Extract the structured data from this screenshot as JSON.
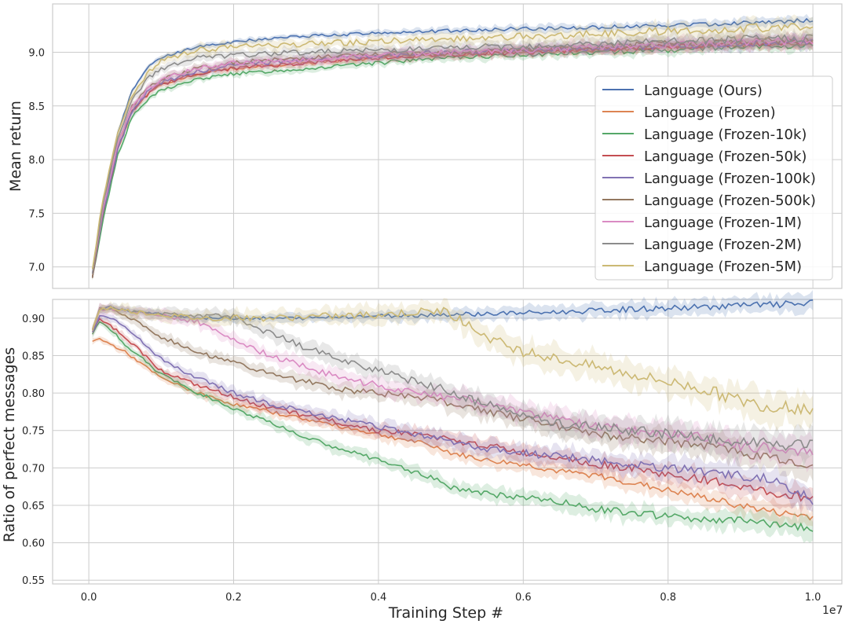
{
  "figure": {
    "x_offset_label": "1e7",
    "x_axis_label": "Training Step #",
    "x_ticks": [
      0.0,
      0.2,
      0.4,
      0.6,
      0.8,
      1.0
    ],
    "x_tick_labels": [
      "0.0",
      "0.2",
      "0.4",
      "0.6",
      "0.8",
      "1.0"
    ]
  },
  "legend": {
    "placement": "upper panel, right",
    "entries": [
      "Language (Ours)",
      "Language (Frozen)",
      "Language (Frozen-10k)",
      "Language (Frozen-50k)",
      "Language (Frozen-100k)",
      "Language (Frozen-500k)",
      "Language (Frozen-1M)",
      "Language (Frozen-2M)",
      "Language (Frozen-5M)"
    ]
  },
  "colors": {
    "Language (Ours)": "#4c72b0",
    "Language (Frozen)": "#dd8452",
    "Language (Frozen-10k)": "#55a868",
    "Language (Frozen-50k)": "#c44e52",
    "Language (Frozen-100k)": "#8172b3",
    "Language (Frozen-500k)": "#937860",
    "Language (Frozen-1M)": "#da8bc3",
    "Language (Frozen-2M)": "#8c8c8c",
    "Language (Frozen-5M)": "#ccb974",
    "grid": "#cccccc",
    "axes_background": "#ffffff"
  },
  "chart_data": [
    {
      "type": "line",
      "panel": "top",
      "ylabel": "Mean return",
      "xlabel": "",
      "xlim": [
        -0.05,
        1.04
      ],
      "ylim": [
        6.8,
        9.45
      ],
      "y_ticks": [
        7.0,
        7.5,
        8.0,
        8.5,
        9.0
      ],
      "y_tick_labels": [
        "7.0",
        "7.5",
        "8.0",
        "8.5",
        "9.0"
      ],
      "grid": true,
      "shaded_band": "variation around each series",
      "x": [
        0.005,
        0.02,
        0.04,
        0.06,
        0.08,
        0.1,
        0.15,
        0.2,
        0.3,
        0.4,
        0.5,
        0.6,
        0.7,
        0.8,
        0.9,
        1.0
      ],
      "series": [
        {
          "name": "Language (Ours)",
          "values": [
            6.95,
            7.6,
            8.25,
            8.65,
            8.85,
            8.95,
            9.05,
            9.1,
            9.15,
            9.18,
            9.2,
            9.22,
            9.23,
            9.25,
            9.27,
            9.3
          ]
        },
        {
          "name": "Language (Frozen)",
          "values": [
            6.9,
            7.5,
            8.1,
            8.45,
            8.6,
            8.7,
            8.8,
            8.85,
            8.9,
            8.95,
            8.98,
            9.0,
            9.02,
            9.05,
            9.07,
            9.08
          ]
        },
        {
          "name": "Language (Frozen-10k)",
          "values": [
            6.9,
            7.45,
            8.05,
            8.4,
            8.55,
            8.65,
            8.75,
            8.8,
            8.85,
            8.9,
            8.95,
            8.98,
            9.0,
            9.02,
            9.05,
            9.06
          ]
        },
        {
          "name": "Language (Frozen-50k)",
          "values": [
            6.9,
            7.5,
            8.1,
            8.45,
            8.6,
            8.7,
            8.8,
            8.85,
            8.9,
            8.95,
            8.98,
            9.0,
            9.03,
            9.05,
            9.08,
            9.1
          ]
        },
        {
          "name": "Language (Frozen-100k)",
          "values": [
            6.9,
            7.5,
            8.1,
            8.45,
            8.62,
            8.72,
            8.82,
            8.88,
            8.93,
            8.97,
            9.0,
            9.02,
            9.04,
            9.06,
            9.08,
            9.1
          ]
        },
        {
          "name": "Language (Frozen-500k)",
          "values": [
            6.9,
            7.55,
            8.15,
            8.5,
            8.65,
            8.75,
            8.85,
            8.9,
            8.95,
            8.98,
            9.0,
            9.03,
            9.05,
            9.08,
            9.1,
            9.12
          ]
        },
        {
          "name": "Language (Frozen-1M)",
          "values": [
            6.95,
            7.55,
            8.15,
            8.5,
            8.65,
            8.75,
            8.85,
            8.9,
            8.93,
            8.97,
            9.0,
            9.02,
            9.05,
            9.07,
            9.09,
            9.11
          ]
        },
        {
          "name": "Language (Frozen-2M)",
          "values": [
            6.95,
            7.6,
            8.2,
            8.55,
            8.75,
            8.85,
            8.95,
            8.97,
            9.0,
            9.02,
            9.04,
            9.06,
            9.08,
            9.1,
            9.12,
            9.14
          ]
        },
        {
          "name": "Language (Frozen-5M)",
          "values": [
            7.0,
            7.65,
            8.25,
            8.6,
            8.8,
            8.92,
            9.02,
            9.05,
            9.08,
            9.1,
            9.12,
            9.15,
            9.17,
            9.2,
            9.22,
            9.25
          ]
        }
      ]
    },
    {
      "type": "line",
      "panel": "bottom",
      "ylabel": "Ratio of perfect messages",
      "xlabel": "Training Step #",
      "xlim": [
        -0.05,
        1.04
      ],
      "ylim": [
        0.545,
        0.925
      ],
      "y_ticks": [
        0.55,
        0.6,
        0.65,
        0.7,
        0.75,
        0.8,
        0.85,
        0.9
      ],
      "y_tick_labels": [
        "0.55",
        "0.60",
        "0.65",
        "0.70",
        "0.75",
        "0.80",
        "0.85",
        "0.90"
      ],
      "grid": true,
      "shaded_band": "variation around each series",
      "x": [
        0.005,
        0.015,
        0.03,
        0.05,
        0.1,
        0.15,
        0.2,
        0.25,
        0.3,
        0.35,
        0.4,
        0.45,
        0.49,
        0.5,
        0.55,
        0.6,
        0.65,
        0.7,
        0.75,
        0.8,
        0.85,
        0.9,
        0.95,
        1.0
      ],
      "series": [
        {
          "name": "Language (Ours)",
          "values": [
            0.885,
            0.912,
            0.915,
            0.91,
            0.905,
            0.9,
            0.9,
            0.9,
            0.9,
            0.902,
            0.903,
            0.904,
            0.905,
            0.905,
            0.906,
            0.907,
            0.908,
            0.91,
            0.912,
            0.913,
            0.915,
            0.917,
            0.918,
            0.92
          ]
        },
        {
          "name": "Language (Frozen)",
          "values": [
            0.87,
            0.872,
            0.865,
            0.855,
            0.82,
            0.8,
            0.785,
            0.775,
            0.765,
            0.755,
            0.745,
            0.735,
            0.725,
            0.72,
            0.71,
            0.705,
            0.695,
            0.69,
            0.68,
            0.67,
            0.66,
            0.65,
            0.64,
            0.635
          ]
        },
        {
          "name": "Language (Frozen-10k)",
          "values": [
            0.88,
            0.895,
            0.885,
            0.865,
            0.825,
            0.8,
            0.78,
            0.76,
            0.74,
            0.725,
            0.71,
            0.695,
            0.68,
            0.675,
            0.665,
            0.66,
            0.655,
            0.645,
            0.64,
            0.635,
            0.63,
            0.63,
            0.625,
            0.62
          ]
        },
        {
          "name": "Language (Frozen-50k)",
          "values": [
            0.88,
            0.9,
            0.89,
            0.875,
            0.83,
            0.81,
            0.795,
            0.78,
            0.77,
            0.76,
            0.75,
            0.745,
            0.74,
            0.735,
            0.73,
            0.72,
            0.715,
            0.705,
            0.7,
            0.69,
            0.685,
            0.675,
            0.665,
            0.66
          ]
        },
        {
          "name": "Language (Frozen-100k)",
          "values": [
            0.88,
            0.905,
            0.9,
            0.89,
            0.845,
            0.82,
            0.8,
            0.785,
            0.775,
            0.765,
            0.755,
            0.745,
            0.74,
            0.735,
            0.725,
            0.72,
            0.715,
            0.71,
            0.705,
            0.7,
            0.695,
            0.69,
            0.685,
            0.655
          ]
        },
        {
          "name": "Language (Frozen-500k)",
          "values": [
            0.885,
            0.912,
            0.912,
            0.905,
            0.875,
            0.855,
            0.84,
            0.825,
            0.815,
            0.805,
            0.8,
            0.795,
            0.79,
            0.785,
            0.775,
            0.765,
            0.755,
            0.745,
            0.74,
            0.735,
            0.73,
            0.72,
            0.71,
            0.7
          ]
        },
        {
          "name": "Language (Frozen-1M)",
          "values": [
            0.885,
            0.912,
            0.913,
            0.91,
            0.905,
            0.895,
            0.87,
            0.85,
            0.835,
            0.82,
            0.81,
            0.8,
            0.795,
            0.795,
            0.785,
            0.775,
            0.765,
            0.755,
            0.75,
            0.745,
            0.74,
            0.73,
            0.725,
            0.72
          ]
        },
        {
          "name": "Language (Frozen-2M)",
          "values": [
            0.885,
            0.912,
            0.914,
            0.91,
            0.905,
            0.903,
            0.902,
            0.88,
            0.86,
            0.845,
            0.83,
            0.815,
            0.805,
            0.8,
            0.785,
            0.77,
            0.76,
            0.755,
            0.75,
            0.745,
            0.74,
            0.735,
            0.73,
            0.73
          ]
        },
        {
          "name": "Language (Frozen-5M)",
          "values": [
            0.885,
            0.912,
            0.914,
            0.91,
            0.905,
            0.9,
            0.9,
            0.9,
            0.902,
            0.903,
            0.905,
            0.908,
            0.91,
            0.905,
            0.875,
            0.855,
            0.845,
            0.835,
            0.825,
            0.815,
            0.805,
            0.79,
            0.78,
            0.78
          ]
        }
      ]
    }
  ]
}
